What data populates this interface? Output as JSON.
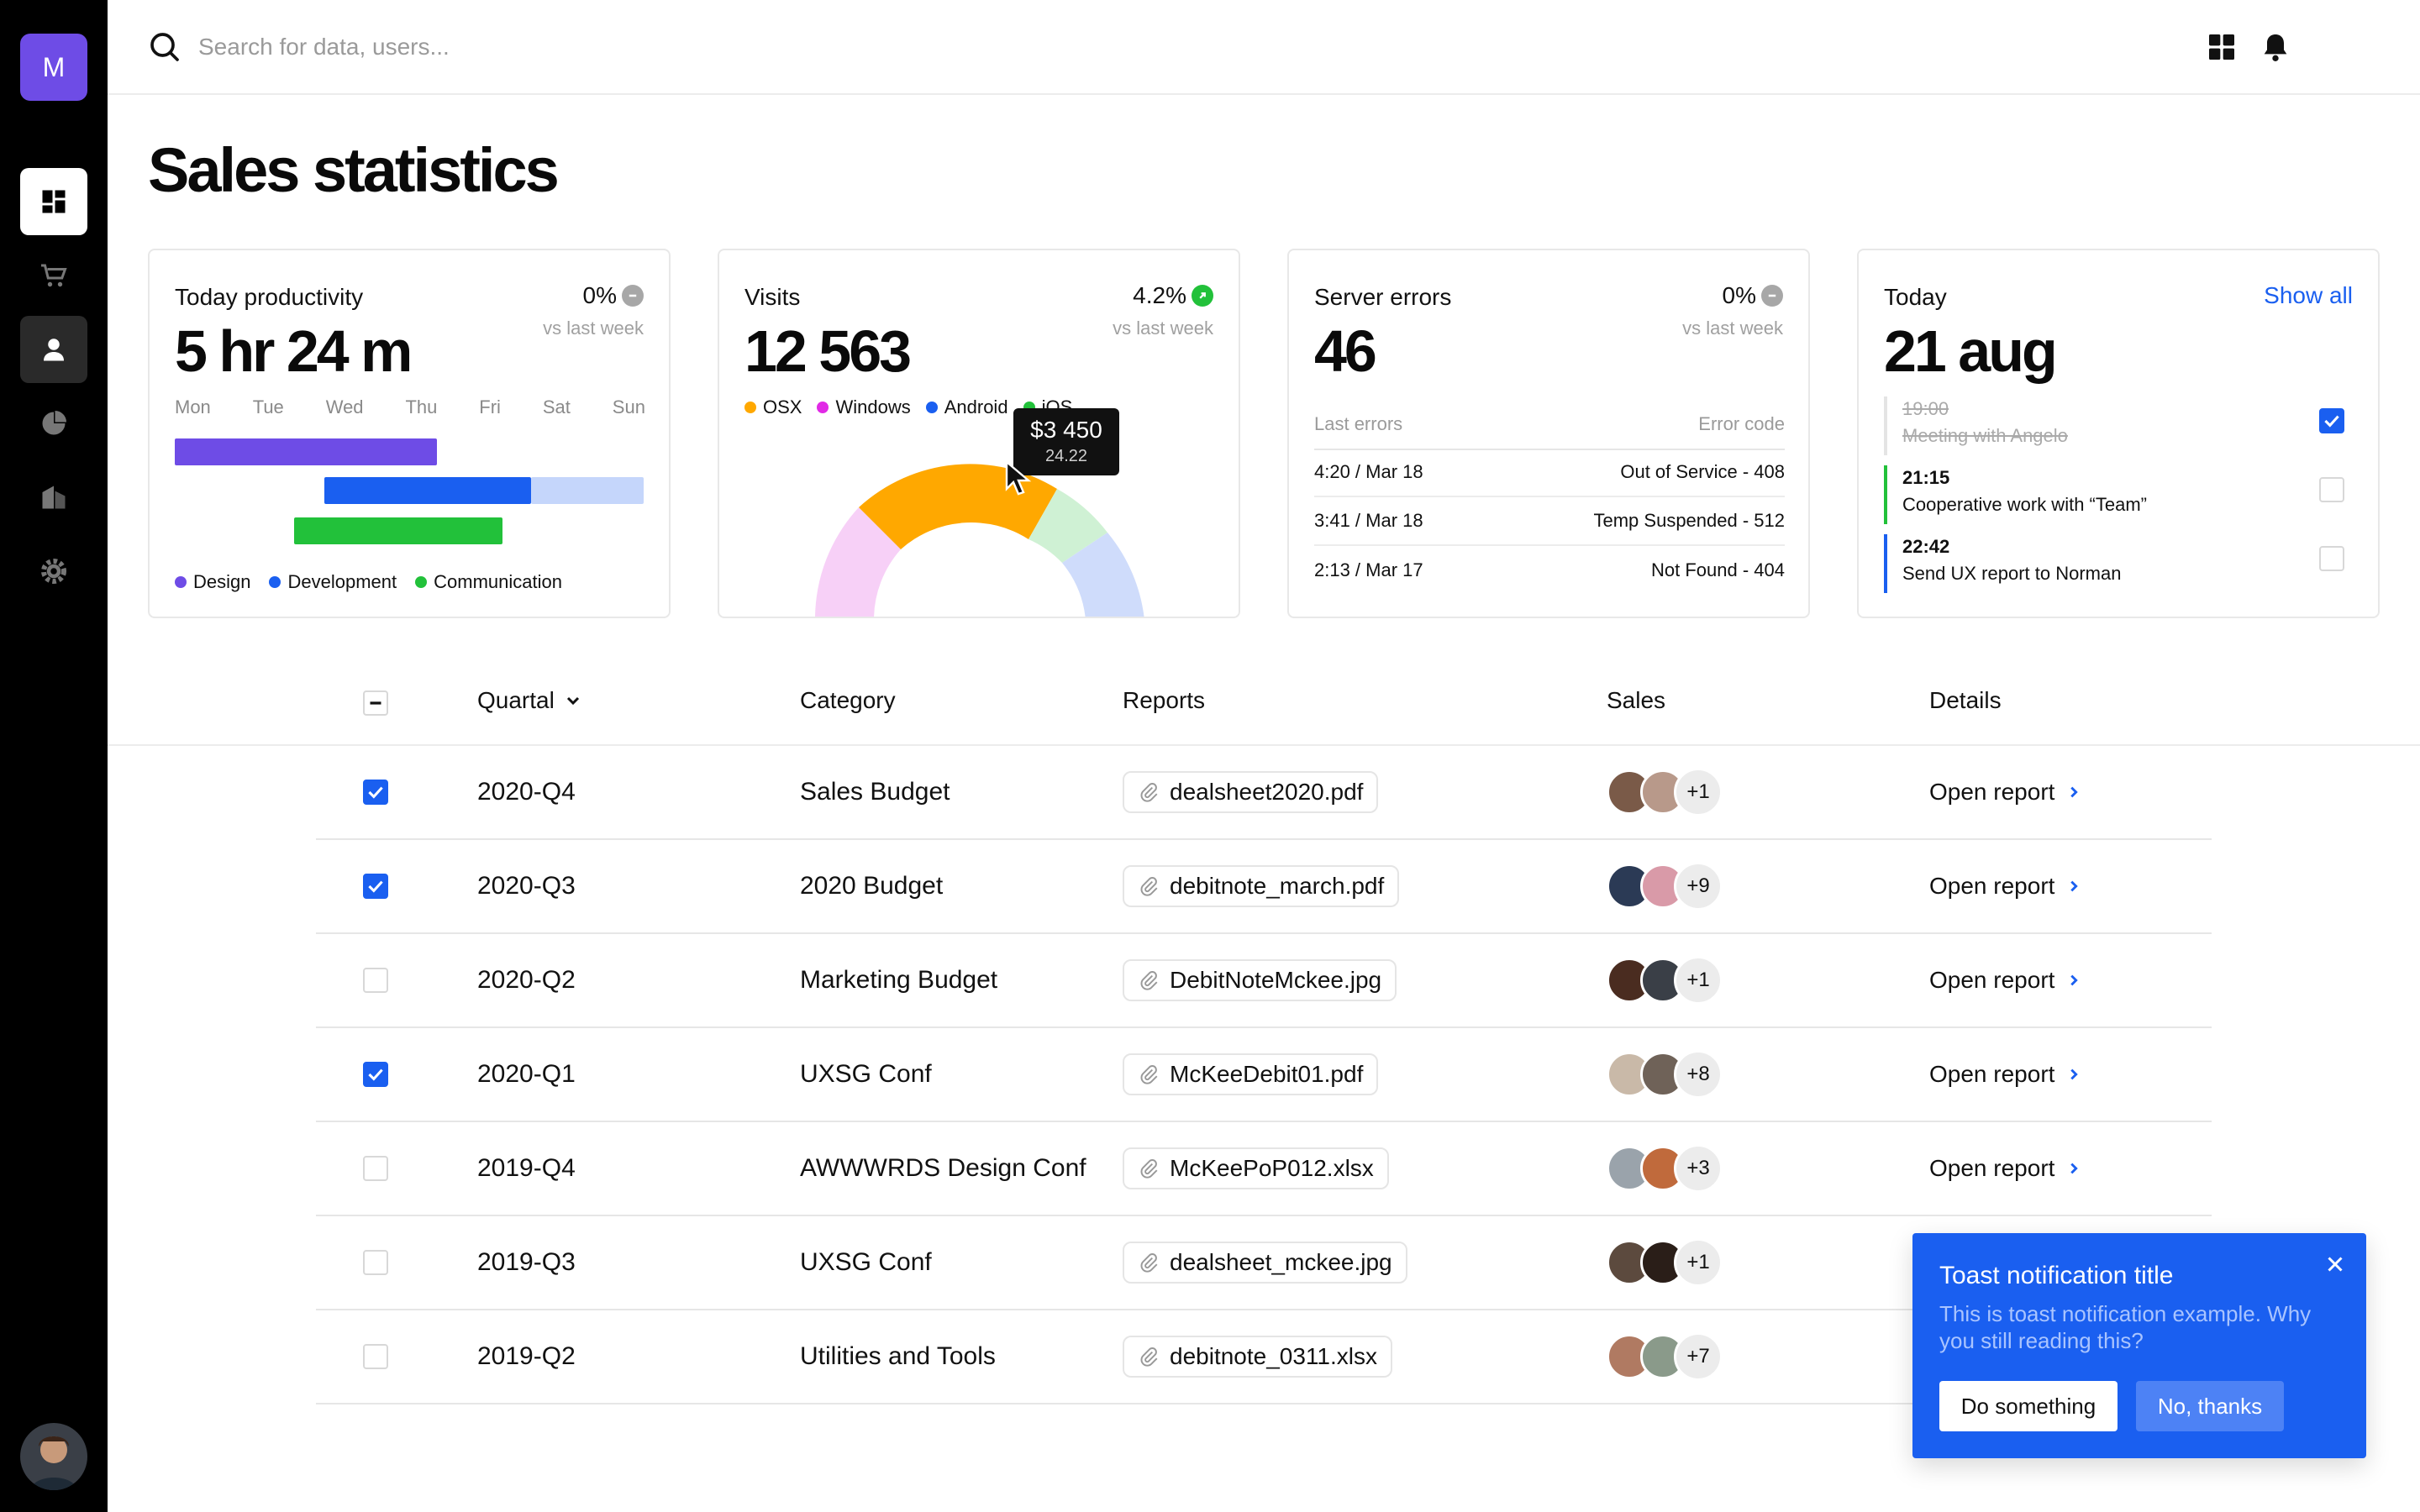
{
  "brand": {
    "logo_letter": "M",
    "accent": "#6e4ce6"
  },
  "sidebar": {
    "items": [
      {
        "name": "dashboard",
        "icon": "dashboard-icon",
        "active": true
      },
      {
        "name": "shop",
        "icon": "cart-icon",
        "active": false
      },
      {
        "name": "users",
        "icon": "user-icon",
        "active": false
      },
      {
        "name": "analytics",
        "icon": "pie-chart-icon",
        "active": false
      },
      {
        "name": "buildings",
        "icon": "building-icon",
        "active": false
      },
      {
        "name": "settings",
        "icon": "gear-icon",
        "active": false
      }
    ]
  },
  "search": {
    "placeholder": "Search for data, users..."
  },
  "page": {
    "title": "Sales statistics"
  },
  "cards": {
    "productivity": {
      "label": "Today productivity",
      "value": "5 hr 24 m",
      "change": "0%",
      "sub": "vs last week",
      "days": [
        "Mon",
        "Tue",
        "Wed",
        "Thu",
        "Fri",
        "Sat",
        "Sun"
      ],
      "legend": [
        "Design",
        "Development",
        "Communication"
      ],
      "colors": {
        "design": "#6e4ce6",
        "development": "#1a5ff0",
        "development_light": "#c5d6fb",
        "communication": "#22c13a"
      }
    },
    "visits": {
      "label": "Visits",
      "value": "12 563",
      "change": "4.2%",
      "sub": "vs last week",
      "legend": [
        "OSX",
        "Windows",
        "Android",
        "iOS"
      ],
      "legend_colors": [
        "#ffa800",
        "#e12ae6",
        "#1a5ff0",
        "#22c13a"
      ],
      "tooltip_value": "$3 450",
      "tooltip_sub": "24.22"
    },
    "errors": {
      "label": "Server errors",
      "value": "46",
      "change": "0%",
      "sub": "vs last week",
      "col_left": "Last errors",
      "col_right": "Error code",
      "rows": [
        {
          "time": "4:20 / Mar 18",
          "code": "Out of Service - 408"
        },
        {
          "time": "3:41 / Mar 18",
          "code": "Temp Suspended - 512"
        },
        {
          "time": "2:13 / Mar 17",
          "code": "Not Found - 404"
        }
      ]
    },
    "today": {
      "label": "Today",
      "value": "21 aug",
      "show_all": "Show all",
      "tasks": [
        {
          "time": "19:00",
          "name": "Meeting with Angelo",
          "done": true
        },
        {
          "time": "21:15",
          "name": "Cooperative work with “Team”",
          "done": false
        },
        {
          "time": "22:42",
          "name": "Send UX report to Norman",
          "done": false
        }
      ]
    }
  },
  "table": {
    "headers": {
      "quartal": "Quartal",
      "category": "Category",
      "reports": "Reports",
      "sales": "Sales",
      "details": "Details"
    },
    "link_label": "Open report",
    "rows": [
      {
        "checked": true,
        "quartal": "2020-Q4",
        "category": "Sales Budget",
        "file": "dealsheet2020.pdf",
        "more": "+1",
        "link": "Open report"
      },
      {
        "checked": true,
        "quartal": "2020-Q3",
        "category": "2020 Budget",
        "file": "debitnote_march.pdf",
        "more": "+9",
        "link": "Open report"
      },
      {
        "checked": false,
        "quartal": "2020-Q2",
        "category": "Marketing Budget",
        "file": "DebitNoteMckee.jpg",
        "more": "+1",
        "link": "Open report"
      },
      {
        "checked": true,
        "quartal": "2020-Q1",
        "category": "UXSG Conf",
        "file": "McKeeDebit01.pdf",
        "more": "+8",
        "link": "Open report"
      },
      {
        "checked": false,
        "quartal": "2019-Q4",
        "category": "AWWWRDS Design Conf",
        "file": "McKeePoP012.xlsx",
        "more": "+3",
        "link": "Open report"
      },
      {
        "checked": false,
        "quartal": "2019-Q3",
        "category": "UXSG Conf",
        "file": "dealsheet_mckee.jpg",
        "more": "+1",
        "link": ""
      },
      {
        "checked": false,
        "quartal": "2019-Q2",
        "category": "Utilities and Tools",
        "file": "debitnote_0311.xlsx",
        "more": "+7",
        "link": ""
      }
    ]
  },
  "toast": {
    "title": "Toast notification title",
    "body": "This is toast notification example.  Why you still reading this?",
    "primary": "Do something",
    "secondary": "No, thanks",
    "color": "#1a5ff0"
  }
}
